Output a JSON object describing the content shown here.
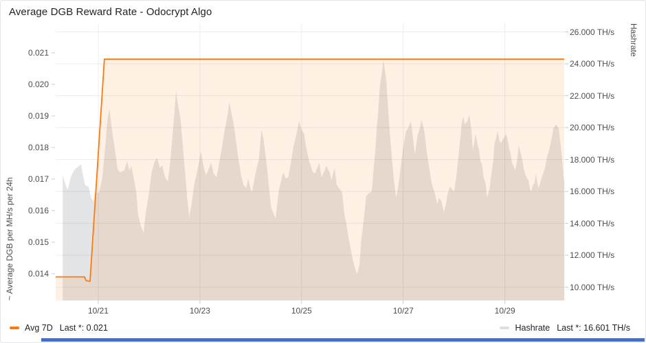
{
  "panel": {
    "title": "Average DGB Reward Rate - Odocrypt Algo"
  },
  "legend": {
    "items": [
      {
        "label": "Avg 7D",
        "stat": "Last *: 0.021",
        "color": "#ff780a"
      },
      {
        "label": "Hashrate",
        "stat": "Last *: 16.601 TH/s",
        "color": "#dcdee1"
      }
    ]
  },
  "chart_data": {
    "type": "area",
    "title": "Average DGB Reward Rate - Odocrypt Algo",
    "colors": {
      "grid": "#ebecee",
      "tick_mark": "#c9cbce",
      "accent": "#ff780a"
    },
    "x_axis": {
      "unit": "days since 10/20",
      "range_days": [
        0.162,
        10.167
      ],
      "ticks": [
        {
          "d": 1,
          "label": "10/21"
        },
        {
          "d": 3,
          "label": "10/23"
        },
        {
          "d": 5,
          "label": "10/25"
        },
        {
          "d": 7,
          "label": "10/27"
        },
        {
          "d": 9,
          "label": "10/29"
        }
      ]
    },
    "y_left": {
      "title": "~ Average DGB per MH/s per 24h",
      "range": [
        0.013152,
        0.021935
      ],
      "ticks": [
        {
          "v": 0.021,
          "label": "0.021"
        },
        {
          "v": 0.02,
          "label": "0.020"
        },
        {
          "v": 0.019,
          "label": "0.019"
        },
        {
          "v": 0.018,
          "label": "0.018"
        },
        {
          "v": 0.017,
          "label": "0.017"
        },
        {
          "v": 0.016,
          "label": "0.016"
        },
        {
          "v": 0.015,
          "label": "0.015"
        },
        {
          "v": 0.014,
          "label": "0.014"
        }
      ]
    },
    "y_right": {
      "title": "Hashrate",
      "range": [
        9.165,
        26.538
      ],
      "ticks": [
        {
          "v": 26,
          "label": "26.000 TH/s"
        },
        {
          "v": 24,
          "label": "24.000 TH/s"
        },
        {
          "v": 22,
          "label": "22.000 TH/s"
        },
        {
          "v": 20,
          "label": "20.000 TH/s"
        },
        {
          "v": 18,
          "label": "18.000 TH/s"
        },
        {
          "v": 16,
          "label": "16.000 TH/s"
        },
        {
          "v": 14,
          "label": "14.000 TH/s"
        },
        {
          "v": 12,
          "label": "12.000 TH/s"
        },
        {
          "v": 10,
          "label": "10.000 TH/s"
        }
      ]
    },
    "series": [
      {
        "name": "Avg 7D",
        "axis": "left",
        "type": "line",
        "color": "#ff780a",
        "fill": "rgba(255,120,10,0.11)",
        "last_value": 0.021,
        "points": [
          [
            0.162,
            0.0139
          ],
          [
            0.73,
            0.0139
          ],
          [
            0.76,
            0.01378
          ],
          [
            0.838,
            0.01376
          ],
          [
            1.12,
            0.0208
          ],
          [
            10.167,
            0.0208
          ]
        ]
      },
      {
        "name": "Hashrate",
        "axis": "right",
        "type": "area",
        "color": "#dcdee1",
        "fill": "rgba(69,72,81,0.15)",
        "last_value": 16.601,
        "points": [
          [
            0.3,
            17.0
          ],
          [
            0.36,
            16.4
          ],
          [
            0.4,
            16.1
          ],
          [
            0.46,
            16.9
          ],
          [
            0.52,
            17.3
          ],
          [
            0.58,
            17.5
          ],
          [
            0.66,
            17.7
          ],
          [
            0.7,
            17.0
          ],
          [
            0.74,
            16.4
          ],
          [
            0.81,
            16.3
          ],
          [
            0.86,
            15.6
          ],
          [
            0.9,
            15.4
          ],
          [
            0.95,
            16.0
          ],
          [
            1.01,
            15.9
          ],
          [
            1.05,
            16.4
          ],
          [
            1.08,
            16.9
          ],
          [
            1.13,
            18.5
          ],
          [
            1.18,
            20.5
          ],
          [
            1.22,
            21.2
          ],
          [
            1.28,
            19.6
          ],
          [
            1.32,
            18.8
          ],
          [
            1.38,
            17.4
          ],
          [
            1.43,
            17.2
          ],
          [
            1.51,
            17.3
          ],
          [
            1.57,
            17.9
          ],
          [
            1.61,
            17.3
          ],
          [
            1.65,
            17.6
          ],
          [
            1.7,
            16.8
          ],
          [
            1.75,
            15.9
          ],
          [
            1.78,
            14.6
          ],
          [
            1.83,
            13.9
          ],
          [
            1.89,
            13.4
          ],
          [
            1.94,
            14.8
          ],
          [
            1.99,
            15.7
          ],
          [
            2.05,
            17.2
          ],
          [
            2.11,
            17.9
          ],
          [
            2.16,
            18.1
          ],
          [
            2.21,
            17.5
          ],
          [
            2.26,
            17.6
          ],
          [
            2.31,
            16.9
          ],
          [
            2.37,
            16.6
          ],
          [
            2.42,
            18.0
          ],
          [
            2.46,
            19.5
          ],
          [
            2.5,
            21.0
          ],
          [
            2.53,
            22.3
          ],
          [
            2.57,
            21.4
          ],
          [
            2.62,
            20.5
          ],
          [
            2.67,
            18.6
          ],
          [
            2.7,
            17.5
          ],
          [
            2.75,
            15.6
          ],
          [
            2.79,
            14.4
          ],
          [
            2.84,
            15.3
          ],
          [
            2.89,
            16.5
          ],
          [
            2.93,
            17.0
          ],
          [
            2.98,
            17.8
          ],
          [
            3.02,
            18.5
          ],
          [
            3.07,
            17.6
          ],
          [
            3.12,
            17.0
          ],
          [
            3.17,
            17.4
          ],
          [
            3.22,
            17.8
          ],
          [
            3.27,
            17.1
          ],
          [
            3.33,
            16.9
          ],
          [
            3.38,
            17.8
          ],
          [
            3.44,
            18.9
          ],
          [
            3.49,
            19.9
          ],
          [
            3.54,
            20.7
          ],
          [
            3.58,
            21.6
          ],
          [
            3.62,
            20.9
          ],
          [
            3.66,
            20.3
          ],
          [
            3.7,
            19.4
          ],
          [
            3.76,
            18.0
          ],
          [
            3.81,
            17.0
          ],
          [
            3.86,
            16.4
          ],
          [
            3.91,
            16.2
          ],
          [
            3.95,
            16.8
          ],
          [
            4.0,
            16.1
          ],
          [
            4.03,
            16.0
          ],
          [
            4.08,
            16.9
          ],
          [
            4.12,
            17.5
          ],
          [
            4.16,
            18.0
          ],
          [
            4.21,
            19.9
          ],
          [
            4.25,
            19.3
          ],
          [
            4.31,
            17.8
          ],
          [
            4.35,
            16.5
          ],
          [
            4.4,
            15.0
          ],
          [
            4.45,
            14.6
          ],
          [
            4.49,
            14.3
          ],
          [
            4.55,
            16.0
          ],
          [
            4.6,
            16.7
          ],
          [
            4.64,
            17.2
          ],
          [
            4.69,
            16.8
          ],
          [
            4.74,
            16.9
          ],
          [
            4.79,
            17.8
          ],
          [
            4.84,
            18.8
          ],
          [
            4.9,
            19.6
          ],
          [
            4.95,
            20.4
          ],
          [
            5.0,
            19.9
          ],
          [
            5.05,
            19.6
          ],
          [
            5.1,
            18.6
          ],
          [
            5.15,
            17.9
          ],
          [
            5.21,
            17.3
          ],
          [
            5.26,
            17.1
          ],
          [
            5.3,
            17.4
          ],
          [
            5.35,
            17.8
          ],
          [
            5.39,
            16.9
          ],
          [
            5.45,
            17.3
          ],
          [
            5.49,
            17.6
          ],
          [
            5.55,
            17.2
          ],
          [
            5.59,
            16.7
          ],
          [
            5.65,
            17.5
          ],
          [
            5.69,
            16.4
          ],
          [
            5.74,
            16.2
          ],
          [
            5.8,
            15.9
          ],
          [
            5.84,
            14.6
          ],
          [
            5.88,
            14.0
          ],
          [
            5.93,
            13.0
          ],
          [
            5.99,
            12.0
          ],
          [
            6.04,
            11.3
          ],
          [
            6.09,
            10.8
          ],
          [
            6.14,
            11.4
          ],
          [
            6.17,
            12.8
          ],
          [
            6.23,
            14.4
          ],
          [
            6.27,
            15.7
          ],
          [
            6.33,
            15.9
          ],
          [
            6.38,
            16.0
          ],
          [
            6.42,
            17.5
          ],
          [
            6.45,
            18.5
          ],
          [
            6.48,
            20.0
          ],
          [
            6.51,
            21.1
          ],
          [
            6.54,
            22.6
          ],
          [
            6.58,
            23.4
          ],
          [
            6.61,
            24.25
          ],
          [
            6.64,
            23.6
          ],
          [
            6.67,
            22.8
          ],
          [
            6.7,
            21.3
          ],
          [
            6.74,
            19.5
          ],
          [
            6.78,
            18.0
          ],
          [
            6.82,
            16.6
          ],
          [
            6.86,
            15.6
          ],
          [
            6.9,
            16.3
          ],
          [
            6.93,
            17.0
          ],
          [
            6.98,
            18.3
          ],
          [
            7.02,
            19.2
          ],
          [
            7.06,
            19.8
          ],
          [
            7.1,
            20.0
          ],
          [
            7.15,
            20.4
          ],
          [
            7.19,
            19.4
          ],
          [
            7.23,
            18.3
          ],
          [
            7.28,
            19.5
          ],
          [
            7.33,
            20.0
          ],
          [
            7.36,
            20.5
          ],
          [
            7.42,
            19.7
          ],
          [
            7.46,
            18.5
          ],
          [
            7.52,
            17.3
          ],
          [
            7.56,
            16.5
          ],
          [
            7.62,
            15.9
          ],
          [
            7.67,
            15.2
          ],
          [
            7.7,
            15.6
          ],
          [
            7.75,
            15.4
          ],
          [
            7.8,
            14.7
          ],
          [
            7.84,
            15.2
          ],
          [
            7.87,
            15.8
          ],
          [
            7.92,
            16.3
          ],
          [
            7.97,
            16.1
          ],
          [
            8.0,
            16.0
          ],
          [
            8.04,
            16.8
          ],
          [
            8.09,
            18.3
          ],
          [
            8.13,
            19.5
          ],
          [
            8.15,
            20.3
          ],
          [
            8.18,
            20.7
          ],
          [
            8.21,
            20.2
          ],
          [
            8.26,
            20.4
          ],
          [
            8.3,
            20.8
          ],
          [
            8.34,
            19.9
          ],
          [
            8.37,
            18.6
          ],
          [
            8.4,
            19.1
          ],
          [
            8.42,
            19.6
          ],
          [
            8.46,
            19.0
          ],
          [
            8.49,
            18.6
          ],
          [
            8.52,
            17.9
          ],
          [
            8.55,
            17.7
          ],
          [
            8.58,
            16.9
          ],
          [
            8.62,
            16.5
          ],
          [
            8.65,
            15.6
          ],
          [
            8.7,
            16.2
          ],
          [
            8.73,
            17.0
          ],
          [
            8.77,
            17.9
          ],
          [
            8.79,
            18.9
          ],
          [
            8.83,
            19.4
          ],
          [
            8.86,
            19.8
          ],
          [
            8.89,
            19.2
          ],
          [
            8.92,
            19.0
          ],
          [
            8.96,
            19.3
          ],
          [
            8.99,
            19.4
          ],
          [
            9.02,
            19.6
          ],
          [
            9.05,
            19.3
          ],
          [
            9.09,
            18.6
          ],
          [
            9.11,
            18.4
          ],
          [
            9.14,
            17.8
          ],
          [
            9.17,
            17.6
          ],
          [
            9.2,
            17.3
          ],
          [
            9.24,
            17.9
          ],
          [
            9.27,
            18.9
          ],
          [
            9.31,
            18.4
          ],
          [
            9.34,
            18.0
          ],
          [
            9.37,
            17.4
          ],
          [
            9.41,
            17.0
          ],
          [
            9.44,
            16.8
          ],
          [
            9.46,
            16.7
          ],
          [
            9.5,
            16.1
          ],
          [
            9.52,
            16.0
          ],
          [
            9.55,
            16.4
          ],
          [
            9.58,
            16.5
          ],
          [
            9.61,
            17.1
          ],
          [
            9.64,
            16.5
          ],
          [
            9.66,
            16.2
          ],
          [
            9.7,
            16.6
          ],
          [
            9.73,
            16.9
          ],
          [
            9.76,
            17.2
          ],
          [
            9.79,
            17.5
          ],
          [
            9.82,
            18.0
          ],
          [
            9.84,
            18.3
          ],
          [
            9.87,
            18.6
          ],
          [
            9.9,
            19.0
          ],
          [
            9.93,
            19.5
          ],
          [
            9.95,
            19.9
          ],
          [
            10.0,
            20.2
          ],
          [
            10.03,
            20.1
          ],
          [
            10.06,
            19.9
          ],
          [
            10.08,
            19.3
          ],
          [
            10.1,
            18.8
          ],
          [
            10.12,
            18.2
          ],
          [
            10.14,
            17.5
          ],
          [
            10.15,
            17.0
          ],
          [
            10.17,
            16.601
          ]
        ]
      }
    ],
    "legend_position": "bottom",
    "grid": true
  }
}
